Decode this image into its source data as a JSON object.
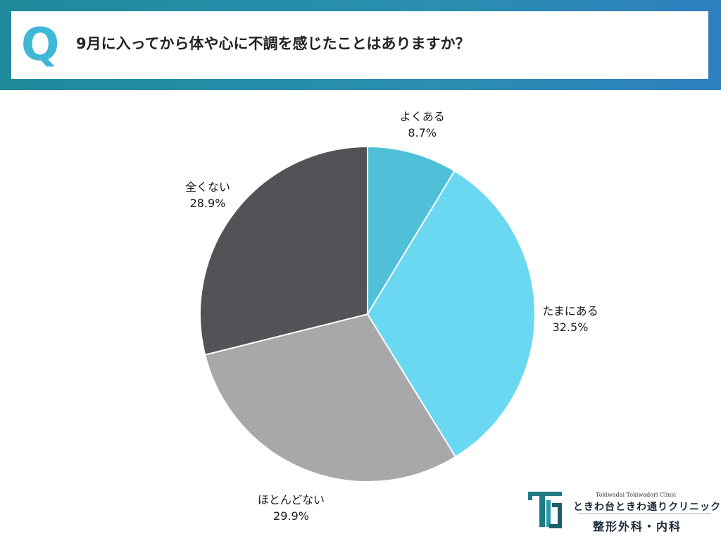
{
  "header": {
    "q_mark": "Q",
    "question": "9月に入ってから体や心に不調を感じたことはありますか？"
  },
  "chart_data": {
    "type": "pie",
    "categories": [
      "よくある",
      "たまにある",
      "ほとんどない",
      "全くない"
    ],
    "values": [
      8.7,
      32.5,
      29.9,
      28.9
    ],
    "value_labels": [
      "8.7%",
      "32.5%",
      "29.9%",
      "28.9%"
    ],
    "colors": [
      "#4fc0d8",
      "#69d8f0",
      "#a8a7aa",
      "#545256"
    ],
    "start": "12 o'clock",
    "direction": "clockwise"
  },
  "logo": {
    "sub": "Tokiwadai Tokiwadori Clinic",
    "name": "ときわ台ときわ通りクリニック",
    "dept": "整形外科・内科",
    "mark": "T-bracket-logo"
  }
}
